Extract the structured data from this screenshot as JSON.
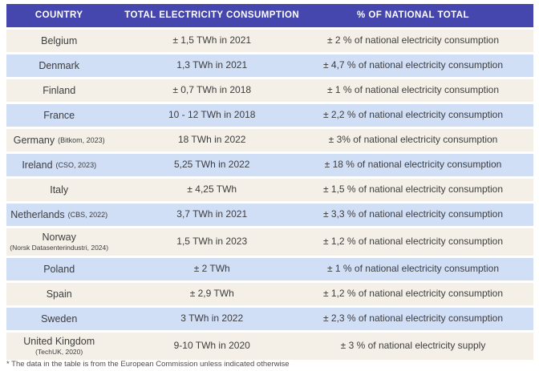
{
  "colors": {
    "header_bg": "#4547ae",
    "header_text": "#ffffff",
    "row_cream": "#f4f0e7",
    "row_blue": "#d0def6",
    "body_text": "#3d3d3d"
  },
  "table": {
    "columns": {
      "country": "COUNTRY",
      "consumption": "TOTAL ELECTRICITY CONSUMPTION",
      "percent": "% OF NATIONAL TOTAL"
    },
    "rows": [
      {
        "country": "Belgium",
        "source": "",
        "consumption": "± 1,5 TWh in 2021",
        "percent": "± 2 % of national electricity consumption"
      },
      {
        "country": "Denmark",
        "source": "",
        "consumption": "1,3 TWh in 2021",
        "percent": "± 4,7 % of national electricity consumption"
      },
      {
        "country": "Finland",
        "source": "",
        "consumption": "± 0,7 TWh in 2018",
        "percent": "± 1 % of national electricity consumption"
      },
      {
        "country": "France",
        "source": "",
        "consumption": "10 - 12 TWh in 2018",
        "percent": "± 2,2 % of national electricity consumption"
      },
      {
        "country": "Germany",
        "source": "(Bitkom, 2023)",
        "consumption": "18 TWh in 2022",
        "percent": "± 3% of national electricity consumption"
      },
      {
        "country": "Ireland",
        "source": "(CSO, 2023)",
        "consumption": "5,25 TWh in 2022",
        "percent": "± 18 % of national electricity consumption"
      },
      {
        "country": "Italy",
        "source": "",
        "consumption": "± 4,25 TWh",
        "percent": "± 1,5 % of national electricity consumption"
      },
      {
        "country": "Netherlands",
        "source": "(CBS, 2022)",
        "consumption": "3,7 TWh in 2021",
        "percent": "± 3,3 % of national electricity consumption"
      },
      {
        "country": "Norway",
        "source": "(Norsk Datasenterindustri, 2024)",
        "consumption": "1,5 TWh in 2023",
        "percent": "± 1,2 % of national electricity consumption"
      },
      {
        "country": "Poland",
        "source": "",
        "consumption": "± 2 TWh",
        "percent": "± 1 % of national electricity consumption"
      },
      {
        "country": "Spain",
        "source": "",
        "consumption": "± 2,9 TWh",
        "percent": "± 1,2 % of national electricity consumption"
      },
      {
        "country": "Sweden",
        "source": "",
        "consumption": "3 TWh in 2022",
        "percent": "± 2,3 % of national electricity consumption"
      },
      {
        "country": "United Kingdom",
        "source": "(TechUK, 2020)",
        "consumption": "9-10 TWh in 2020",
        "percent": "± 3 % of national electricity supply"
      }
    ]
  },
  "footnote": "* The data in the table is from the European Commission unless indicated otherwise"
}
